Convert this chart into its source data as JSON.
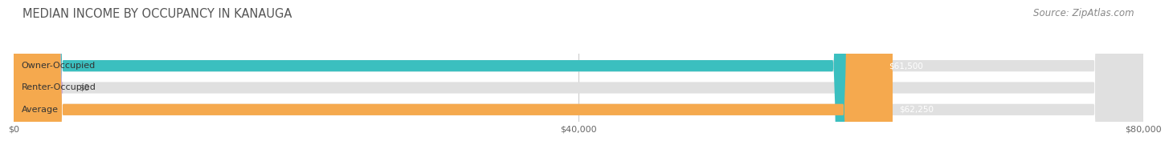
{
  "title": "MEDIAN INCOME BY OCCUPANCY IN KANAUGA",
  "source": "Source: ZipAtlas.com",
  "categories": [
    "Owner-Occupied",
    "Renter-Occupied",
    "Average"
  ],
  "values": [
    61500,
    0,
    62250
  ],
  "bar_colors": [
    "#3bbfbf",
    "#c9afd4",
    "#f5a94e"
  ],
  "value_labels": [
    "$61,500",
    "$0",
    "$62,250"
  ],
  "xlim": [
    0,
    80000
  ],
  "xticks": [
    0,
    40000,
    80000
  ],
  "xtick_labels": [
    "$0",
    "$40,000",
    "$80,000"
  ],
  "bg_color": "#ffffff",
  "bar_bg_color": "#e0e0e0",
  "title_fontsize": 10.5,
  "source_fontsize": 8.5,
  "bar_height": 0.52
}
